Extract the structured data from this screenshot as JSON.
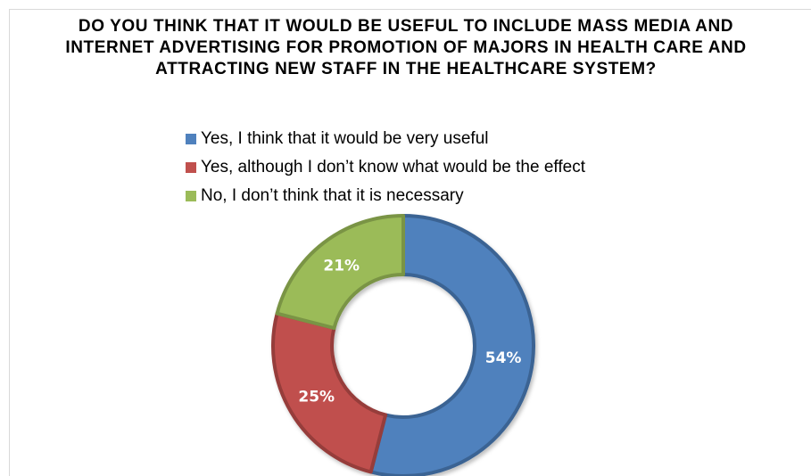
{
  "chart_data": {
    "type": "pie",
    "donut": true,
    "title": "DO YOU THINK THAT IT WOULD BE USEFUL TO INCLUDE MASS MEDIA AND INTERNET ADVERTISING FOR PROMOTION OF MAJORS IN HEALTH CARE AND ATTRACTING NEW STAFF IN THE HEALTHCARE SYSTEM?",
    "legend_position": "top",
    "slices": [
      {
        "label": "Yes, I think that it would be very useful",
        "value": 54,
        "display": "54%",
        "color": "#4f81bd",
        "edge_color": "#3a6393"
      },
      {
        "label": "Yes, although I don’t know what would be the effect",
        "value": 25,
        "display": "25%",
        "color": "#c0504d",
        "edge_color": "#963c3a"
      },
      {
        "label": "No, I don’t think that it is necessary",
        "value": 21,
        "display": "21%",
        "color": "#9bbb59",
        "edge_color": "#7a9444"
      }
    ]
  }
}
